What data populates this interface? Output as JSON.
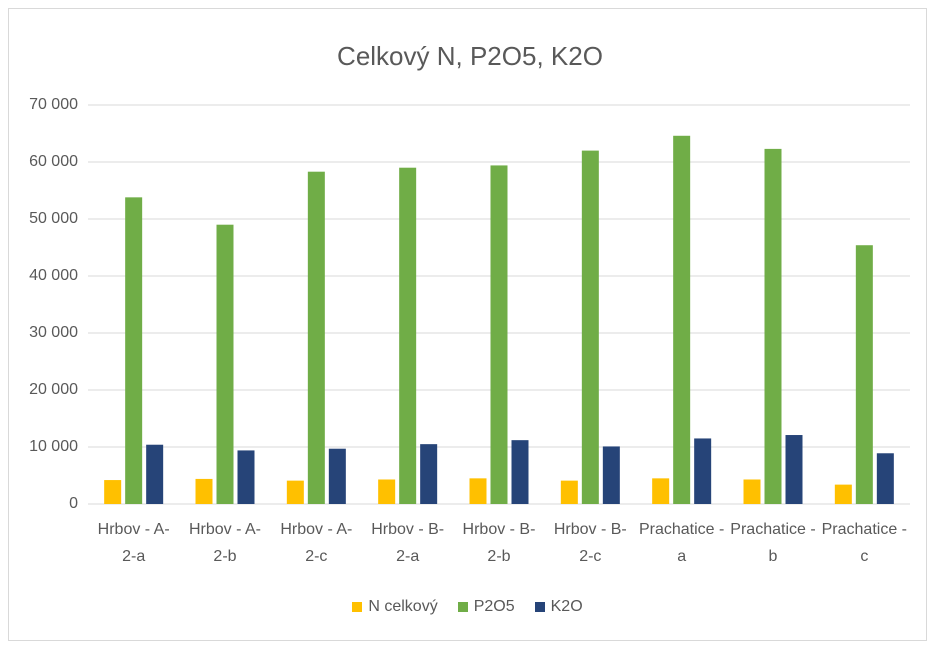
{
  "chart_data": {
    "type": "bar",
    "title": "Celkový N, P2O5, K2O",
    "categories": [
      "Hrbov - A- 2-a",
      "Hrbov - A- 2-b",
      "Hrbov - A- 2-c",
      "Hrbov - B- 2-a",
      "Hrbov - B- 2-b",
      "Hrbov - B- 2-c",
      "Prachatice - a",
      "Prachatice - b",
      "Prachatice - c"
    ],
    "series": [
      {
        "name": "N celkový",
        "color": "#ffc000",
        "values": [
          4200,
          4400,
          4100,
          4300,
          4500,
          4100,
          4500,
          4300,
          3400
        ]
      },
      {
        "name": "P2O5",
        "color": "#70ad47",
        "values": [
          53800,
          49000,
          58300,
          59000,
          59400,
          62000,
          64600,
          62300,
          45400
        ]
      },
      {
        "name": "K2O",
        "color": "#264478",
        "values": [
          10400,
          9400,
          9700,
          10500,
          11200,
          10100,
          11500,
          12100,
          8900
        ]
      }
    ],
    "ylim": [
      0,
      70000
    ],
    "yticks": [
      0,
      {
        "value": 10000,
        "label": "10 000"
      },
      {
        "value": 20000,
        "label": "20 000"
      },
      {
        "value": 30000,
        "label": "30 000"
      },
      {
        "value": 40000,
        "label": "40 000"
      },
      {
        "value": 50000,
        "label": "50 000"
      },
      {
        "value": 60000,
        "label": "60 000"
      },
      {
        "value": 70000,
        "label": "70 000"
      }
    ],
    "grid": true,
    "legend": "bottom"
  }
}
